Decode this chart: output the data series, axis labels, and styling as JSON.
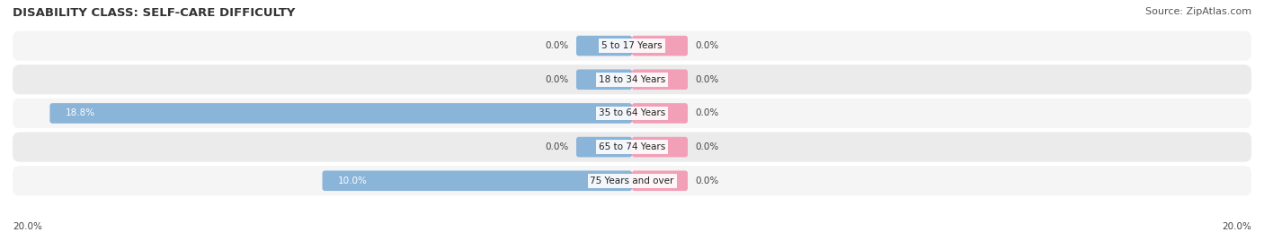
{
  "title": "DISABILITY CLASS: SELF-CARE DIFFICULTY",
  "source": "Source: ZipAtlas.com",
  "categories": [
    "5 to 17 Years",
    "18 to 34 Years",
    "35 to 64 Years",
    "65 to 74 Years",
    "75 Years and over"
  ],
  "male_values": [
    0.0,
    0.0,
    18.8,
    0.0,
    10.0
  ],
  "female_values": [
    0.0,
    0.0,
    0.0,
    0.0,
    0.0
  ],
  "male_color": "#8ab4d8",
  "female_color": "#f2a0b8",
  "row_bg_even": "#f5f5f5",
  "row_bg_odd": "#ebebeb",
  "max_value": 20.0,
  "axis_label_left": "20.0%",
  "axis_label_right": "20.0%",
  "title_fontsize": 9.5,
  "source_fontsize": 8,
  "label_fontsize": 7.5,
  "category_fontsize": 7.5,
  "legend_fontsize": 8.5,
  "background_color": "#ffffff",
  "small_bar_width": 1.8,
  "bar_height": 0.6
}
